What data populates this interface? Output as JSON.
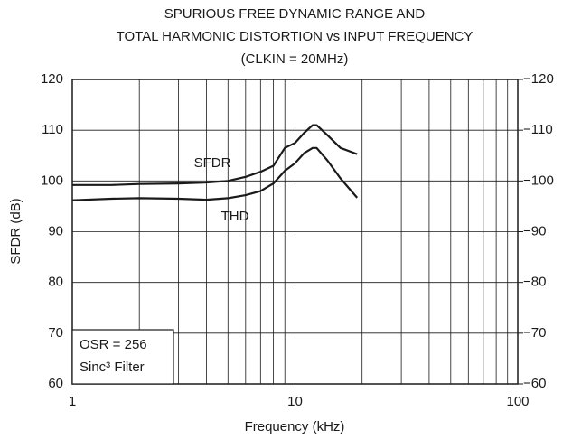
{
  "chart_data": {
    "type": "line",
    "title": [
      "SPURIOUS FREE DYNAMIC RANGE AND",
      "TOTAL HARMONIC DISTORTION vs INPUT FREQUENCY",
      "(CLKIN = 20MHz)"
    ],
    "xlabel": "Frequency (kHz)",
    "ylabel": "SFDR (dB)",
    "x": [
      1,
      1.5,
      2,
      3,
      4,
      5,
      6,
      7,
      8,
      9,
      10,
      11,
      12,
      12.5,
      14,
      16,
      19
    ],
    "series": [
      {
        "name": "SFDR",
        "color": "#1a1a1a",
        "values": [
          99.2,
          99.2,
          99.4,
          99.5,
          99.7,
          100,
          100.8,
          101.8,
          103,
          106.5,
          107.5,
          109.5,
          111,
          111,
          109,
          106.5,
          105.3
        ]
      },
      {
        "name": "THD",
        "color": "#1a1a1a",
        "values": [
          96.2,
          96.5,
          96.6,
          96.5,
          96.3,
          96.6,
          97.2,
          98,
          99.5,
          102,
          103.5,
          105.5,
          106.5,
          106.5,
          104,
          100.5,
          96.7
        ]
      }
    ],
    "xlim": [
      1,
      100
    ],
    "xticks": [
      1,
      10,
      100
    ],
    "xscale": "log",
    "ylim": [
      60,
      120
    ],
    "yticks": [
      60,
      70,
      80,
      90,
      100,
      110,
      120
    ],
    "y2lim": [
      -60,
      -120
    ],
    "y2ticks": [
      {
        "value": -60,
        "label": "−60"
      },
      {
        "value": -70,
        "label": "−70"
      },
      {
        "value": -80,
        "label": "−80"
      },
      {
        "value": -90,
        "label": "−90"
      },
      {
        "value": -100,
        "label": "−100"
      },
      {
        "value": -110,
        "label": "−110"
      },
      {
        "value": -120,
        "label": "−120"
      }
    ],
    "grid": true,
    "annotations": [
      "OSR = 256",
      "Sinc³ Filter"
    ]
  }
}
